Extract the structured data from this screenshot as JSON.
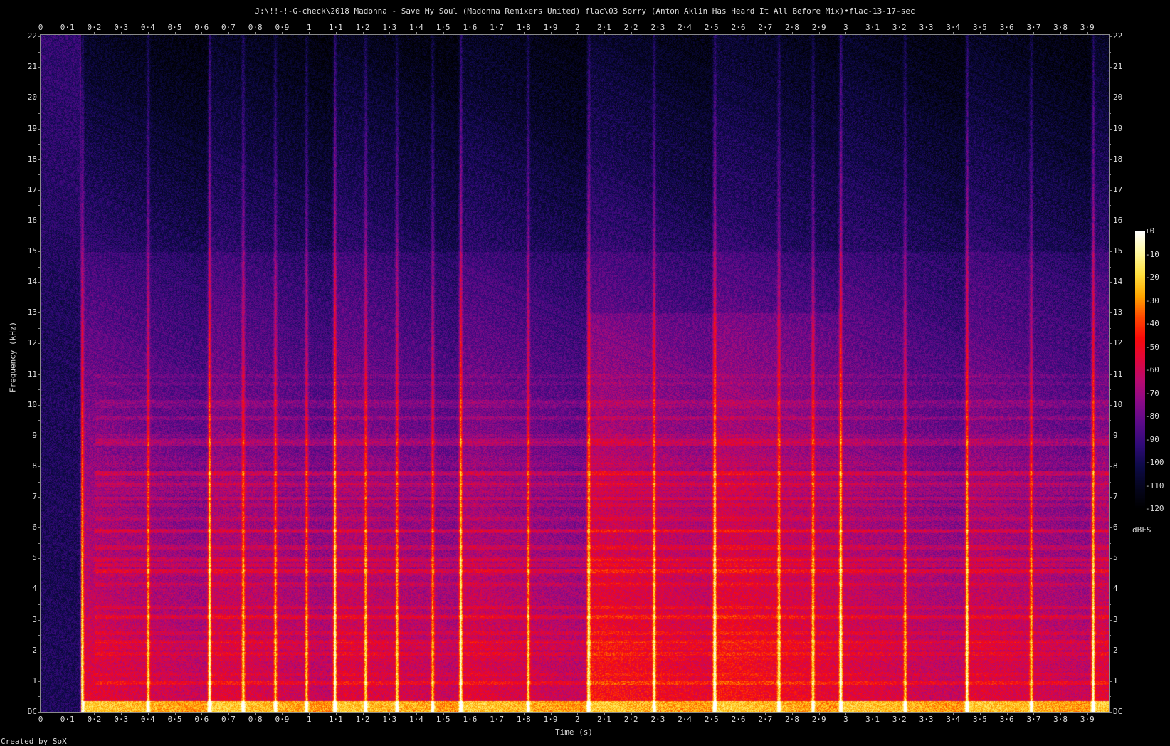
{
  "chart_data": {
    "type": "heatmap",
    "title": "J:\\!!-!-G-check\\2018 Madonna - Save My Soul (Madonna Remixers United) flac\\03 Sorry (Anton Aklin Has Heard It All Before Mix)•flac-13-17-sec",
    "xlabel": "Time (s)",
    "ylabel": "Frequency (kHz)",
    "xlim": [
      0,
      3.98
    ],
    "ylim": [
      0,
      22.05
    ],
    "x_ticks": [
      "0",
      "0·1",
      "0·2",
      "0·3",
      "0·4",
      "0·5",
      "0·6",
      "0·7",
      "0·8",
      "0·9",
      "1",
      "1·1",
      "1·2",
      "1·3",
      "1·4",
      "1·5",
      "1·6",
      "1·7",
      "1·8",
      "1·9",
      "2",
      "2·1",
      "2·2",
      "2·3",
      "2·4",
      "2·5",
      "2·6",
      "2·7",
      "2·8",
      "2·9",
      "3",
      "3·1",
      "3·2",
      "3·3",
      "3·4",
      "3·5",
      "3·6",
      "3·7",
      "3·8",
      "3·9"
    ],
    "y_ticks": [
      "DC",
      "1",
      "2",
      "3",
      "4",
      "5",
      "6",
      "7",
      "8",
      "9",
      "10",
      "11",
      "12",
      "13",
      "14",
      "15",
      "16",
      "17",
      "18",
      "19",
      "20",
      "21",
      "22"
    ],
    "colorbar": {
      "label": "dBFS",
      "range": [
        -120,
        0
      ],
      "ticks": [
        "+0",
        "-10",
        "-20",
        "-30",
        "-40",
        "-50",
        "-60",
        "-70",
        "-80",
        "-90",
        "-100",
        "-110",
        "-120"
      ],
      "colors": [
        "#000000",
        "#05051e",
        "#0d0a48",
        "#300a78",
        "#5a0a88",
        "#8a0a88",
        "#b80a70",
        "#e0063c",
        "#f80a0a",
        "#ff4a00",
        "#ffa800",
        "#ffe040",
        "#fff8a0",
        "#ffffff"
      ]
    },
    "grid": false
  },
  "footer": {
    "credit": "Created by SoX"
  }
}
